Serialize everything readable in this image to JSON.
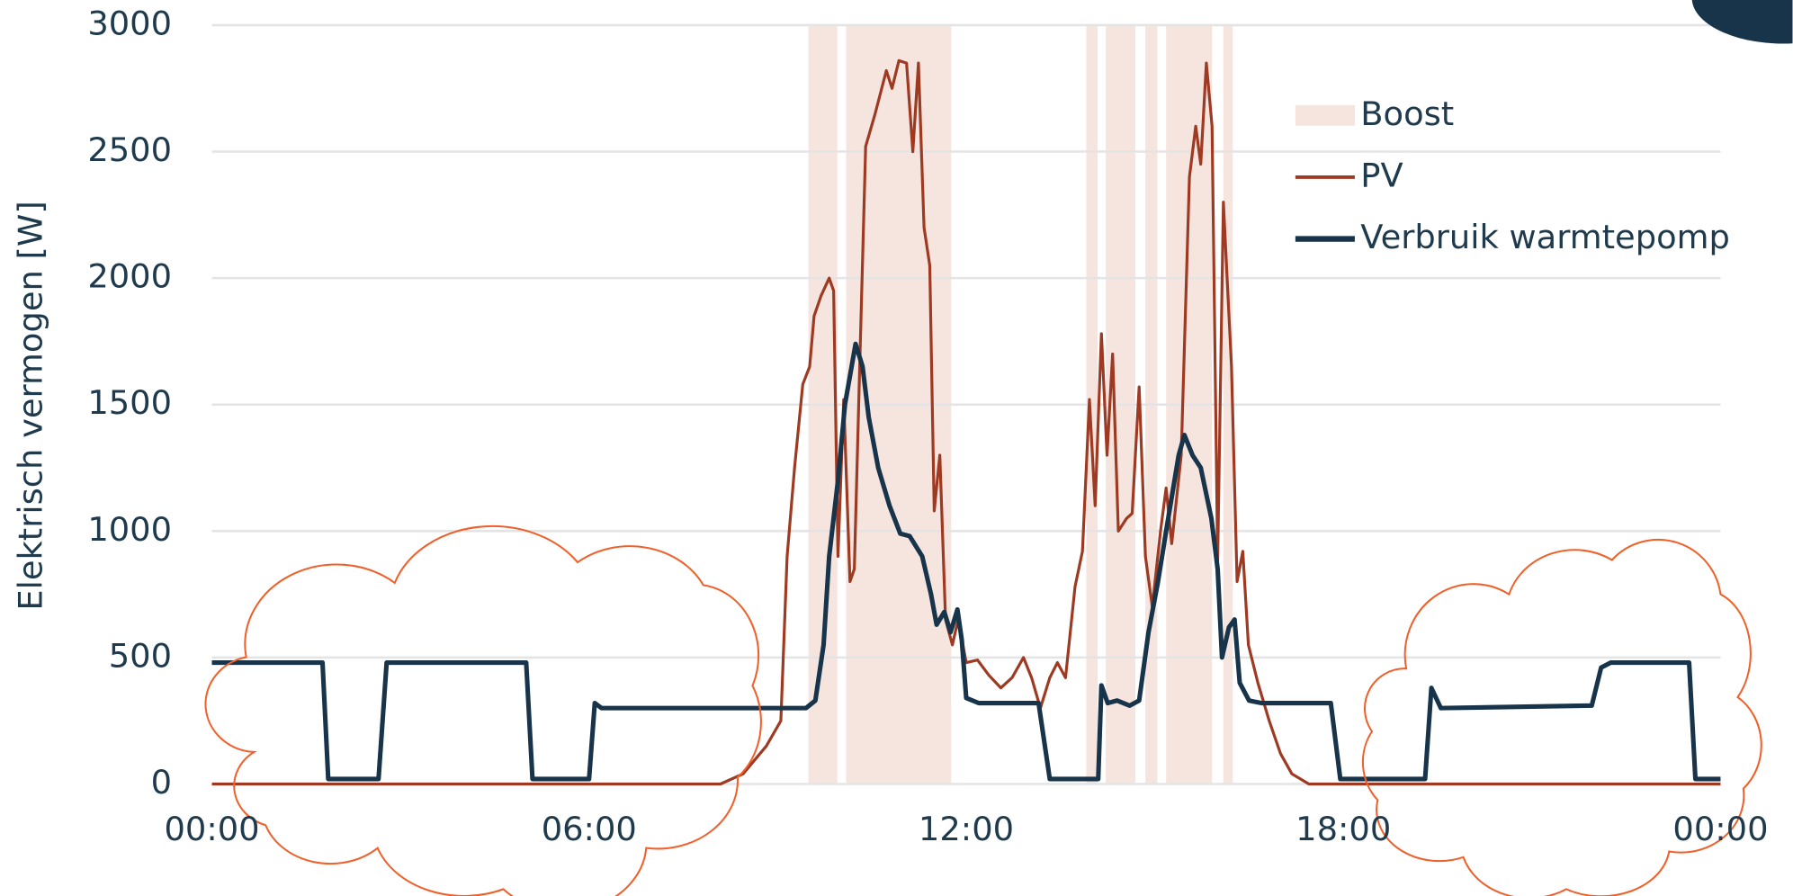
{
  "chart_data": {
    "type": "line",
    "y_label": "Elektrisch vermogen [W]",
    "xlim": [
      0,
      24
    ],
    "xticks": [
      {
        "value": 0,
        "label": "00:00"
      },
      {
        "value": 6,
        "label": "06:00"
      },
      {
        "value": 12,
        "label": "12:00"
      },
      {
        "value": 18,
        "label": "18:00"
      },
      {
        "value": 24,
        "label": "00:00"
      }
    ],
    "ylim": [
      0,
      3000
    ],
    "yticks": [
      0,
      500,
      1000,
      1500,
      2000,
      2500,
      3000
    ],
    "grid": true,
    "legend": "upper right",
    "boost": {
      "name": "Boost",
      "color": "#f6e4df",
      "intervals": [
        [
          9.49,
          9.95
        ],
        [
          10.09,
          11.76
        ],
        [
          13.91,
          14.09
        ],
        [
          14.22,
          14.69
        ],
        [
          14.85,
          15.04
        ],
        [
          15.18,
          15.91
        ],
        [
          16.09,
          16.24
        ]
      ]
    },
    "series": [
      {
        "name": "PV",
        "color": "#9e3a22",
        "x": [
          0,
          8.09,
          8.45,
          8.82,
          9.05,
          9.15,
          9.27,
          9.4,
          9.51,
          9.58,
          9.69,
          9.82,
          9.89,
          9.96,
          10.05,
          10.15,
          10.22,
          10.31,
          10.4,
          10.55,
          10.73,
          10.82,
          10.93,
          11.05,
          11.15,
          11.24,
          11.33,
          11.42,
          11.49,
          11.58,
          11.67,
          11.78,
          11.87,
          12.0,
          12.18,
          12.36,
          12.55,
          12.73,
          12.91,
          13.04,
          13.18,
          13.33,
          13.45,
          13.58,
          13.73,
          13.85,
          13.96,
          14.05,
          14.15,
          14.24,
          14.33,
          14.42,
          14.55,
          14.64,
          14.75,
          14.85,
          14.96,
          15.09,
          15.18,
          15.27,
          15.42,
          15.55,
          15.65,
          15.73,
          15.82,
          15.91,
          16.0,
          16.09,
          16.22,
          16.31,
          16.4,
          16.49,
          16.64,
          16.82,
          17.0,
          17.18,
          17.45,
          24
        ],
        "values": [
          0,
          0,
          40,
          150,
          250,
          900,
          1250,
          1580,
          1650,
          1850,
          1930,
          2000,
          1950,
          900,
          1520,
          800,
          850,
          1700,
          2520,
          2650,
          2820,
          2750,
          2860,
          2850,
          2500,
          2850,
          2200,
          2050,
          1080,
          1300,
          650,
          550,
          650,
          480,
          490,
          430,
          380,
          420,
          500,
          420,
          300,
          420,
          480,
          420,
          780,
          920,
          1520,
          1100,
          1780,
          1300,
          1700,
          1000,
          1050,
          1070,
          1570,
          900,
          700,
          1000,
          1170,
          950,
          1300,
          2400,
          2600,
          2450,
          2850,
          2600,
          880,
          2300,
          1650,
          800,
          920,
          550,
          400,
          250,
          120,
          40,
          0,
          0
        ]
      },
      {
        "name": "Verbruik warmtepomp",
        "color": "#17344a",
        "x": [
          0,
          1.76,
          1.85,
          2.65,
          2.78,
          5.0,
          5.1,
          6.0,
          6.09,
          6.2,
          9.45,
          9.6,
          9.73,
          9.82,
          9.96,
          10.07,
          10.24,
          10.35,
          10.45,
          10.6,
          10.78,
          10.95,
          11.1,
          11.3,
          11.44,
          11.53,
          11.65,
          11.75,
          11.86,
          11.93,
          12.0,
          12.2,
          13.15,
          13.33,
          14.1,
          14.15,
          14.25,
          14.4,
          14.6,
          14.75,
          14.9,
          15.05,
          15.18,
          15.38,
          15.47,
          15.6,
          15.73,
          15.9,
          16.0,
          16.07,
          16.18,
          16.27,
          16.35,
          16.5,
          16.7,
          17.8,
          17.95,
          19.3,
          19.4,
          19.55,
          21.95,
          22.1,
          22.25,
          23.5,
          23.6,
          24
        ],
        "values": [
          480,
          480,
          20,
          20,
          480,
          480,
          20,
          20,
          320,
          300,
          300,
          330,
          550,
          900,
          1200,
          1500,
          1740,
          1650,
          1450,
          1250,
          1100,
          990,
          980,
          900,
          750,
          630,
          680,
          600,
          690,
          570,
          340,
          320,
          320,
          20,
          20,
          390,
          320,
          330,
          310,
          330,
          600,
          800,
          1000,
          1300,
          1380,
          1300,
          1250,
          1050,
          850,
          500,
          620,
          650,
          400,
          330,
          320,
          320,
          20,
          20,
          380,
          300,
          310,
          460,
          480,
          480,
          20,
          20
        ]
      }
    ]
  }
}
